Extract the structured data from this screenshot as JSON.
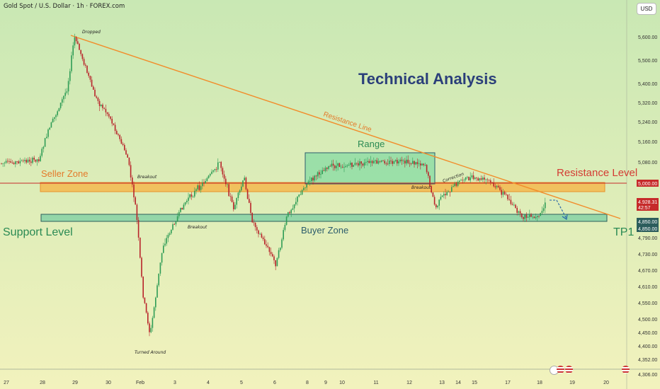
{
  "header": {
    "symbol_title": "Gold Spot / U.S. Dollar · 1h · FOREX.com",
    "currency_button": "USD"
  },
  "colors": {
    "background_top": "#c9e8b4",
    "background_bottom": "#f2f2bd",
    "candle_up": "#2e9c55",
    "candle_down": "#b8232a",
    "trendline": "#f28c2a",
    "seller_zone_fill": "#f4b84e",
    "seller_zone_border": "#e8922c",
    "buyer_zone_fill": "#7fd0a4",
    "buyer_zone_border": "#2c5d5c",
    "range_fill": "#86dba3",
    "range_border": "#2d5d6c",
    "red_level": "#c62a2a",
    "title_blue": "#2b3f7a",
    "label_orange": "#e47a2a",
    "label_red": "#d43c34",
    "label_green": "#2a8a54",
    "label_teal": "#2d5d6c",
    "tp1": "#2a8a54"
  },
  "chart_data": {
    "type": "candlestick",
    "title": "Technical Analysis",
    "symbol": "Gold Spot / U.S. Dollar",
    "interval": "1h",
    "x_tick_labels": [
      "27",
      "28",
      "29",
      "30",
      "Feb",
      "3",
      "4",
      "5",
      "6",
      "8",
      "9",
      "10",
      "11",
      "12",
      "13",
      "14",
      "15",
      "17",
      "18",
      "19",
      "20"
    ],
    "y_tick_labels": [
      "5,600.00",
      "5,500.00",
      "5,400.00",
      "5,320.00",
      "5,240.00",
      "5,160.00",
      "5,080.00",
      "5,000.00",
      "4,928.31",
      "42:57",
      "4,850.00",
      "4,790.00",
      "4,730.00",
      "4,670.00",
      "4,610.00",
      "4,550.00",
      "4,500.00",
      "4,450.00",
      "4,400.00",
      "4,352.00",
      "4,306.00"
    ],
    "y_ticks": [
      5600,
      5500,
      5400,
      5320,
      5240,
      5160,
      5080,
      5000,
      4850,
      4790,
      4730,
      4670,
      4610,
      4550,
      4500,
      4450,
      4400,
      4352,
      4306
    ],
    "price_path": [
      {
        "x": "27",
        "y": 5075
      },
      {
        "x": "28",
        "y": 5090
      },
      {
        "x": "28",
        "y": 5180
      },
      {
        "x": "29",
        "y": 5380
      },
      {
        "x": "29",
        "y": 5600
      },
      {
        "x": "29",
        "y": 5520
      },
      {
        "x": "30",
        "y": 5340
      },
      {
        "x": "30",
        "y": 5260
      },
      {
        "x": "Feb",
        "y": 5100
      },
      {
        "x": "Feb",
        "y": 4900
      },
      {
        "x": "Feb",
        "y": 4580
      },
      {
        "x": "Feb",
        "y": 4440
      },
      {
        "x": "Feb",
        "y": 4760
      },
      {
        "x": "3",
        "y": 4920
      },
      {
        "x": "4",
        "y": 5040
      },
      {
        "x": "4",
        "y": 5080
      },
      {
        "x": "5",
        "y": 4900
      },
      {
        "x": "5",
        "y": 5020
      },
      {
        "x": "5",
        "y": 4860
      },
      {
        "x": "6",
        "y": 4780
      },
      {
        "x": "6",
        "y": 4690
      },
      {
        "x": "6",
        "y": 4870
      },
      {
        "x": "8",
        "y": 4990
      },
      {
        "x": "9",
        "y": 5060
      },
      {
        "x": "10",
        "y": 5070
      },
      {
        "x": "11",
        "y": 5080
      },
      {
        "x": "12",
        "y": 5075
      },
      {
        "x": "13",
        "y": 4900
      },
      {
        "x": "13",
        "y": 4950
      },
      {
        "x": "14",
        "y": 5020
      },
      {
        "x": "15",
        "y": 5010
      },
      {
        "x": "17",
        "y": 4950
      },
      {
        "x": "17",
        "y": 4870
      },
      {
        "x": "18",
        "y": 4860
      },
      {
        "x": "18",
        "y": 4928.31
      }
    ],
    "levels": {
      "resistance_level": 5000.0,
      "support_level": 4850.0,
      "current_price": 4928.31,
      "seller_zone": [
        4955,
        4985
      ],
      "buyer_zone": [
        4852,
        4880
      ],
      "range": [
        5010,
        5130
      ]
    },
    "price_badges": [
      {
        "text": "5,000.00",
        "color": "#c62a2a"
      },
      {
        "text": "4,928.31",
        "color": "#c62a2a"
      },
      {
        "text": "42:57",
        "color": "#c62a2a"
      },
      {
        "text": "4,850.00",
        "color": "#2c5d5c"
      },
      {
        "text": "4,850.00",
        "color": "#2c5d5c"
      }
    ],
    "annotations": {
      "dropped": "Dropped",
      "breakout_1": "Breakout",
      "breakout_2": "Breakout",
      "breakout_3": "Breakout",
      "turned_around": "Turned Around",
      "correction": "Correction",
      "resistance_line": "Resistance Line",
      "range": "Range",
      "seller_zone": "Seller Zone",
      "buyer_zone": "Buyer Zone",
      "support_level": "Support Level",
      "resistance_level": "Resistance Level",
      "tp1": "TP1"
    },
    "grid": false
  }
}
